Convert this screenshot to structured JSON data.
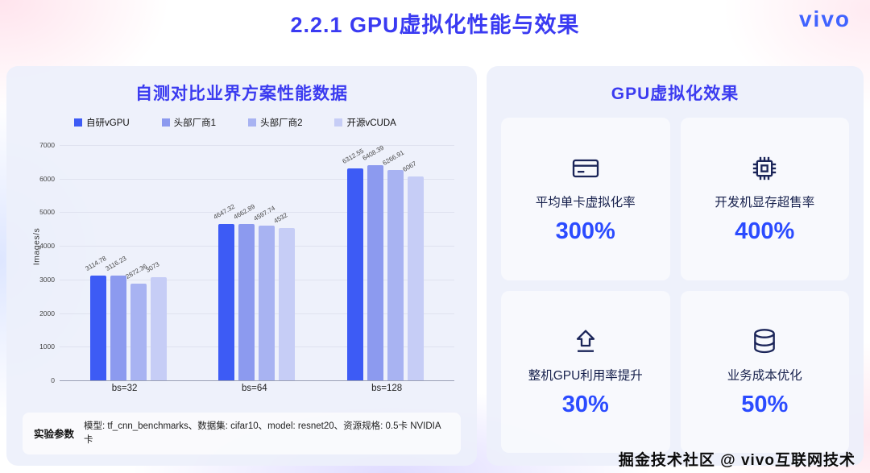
{
  "header": {
    "title": "2.2.1 GPU虚拟化性能与效果",
    "logo": "vivo"
  },
  "left_panel": {
    "title": "自测对比业界方案性能数据",
    "footer_label": "实验参数",
    "footer_text": "模型: tf_cnn_benchmarks、数据集: cifar10、model: resnet20、资源规格: 0.5卡 NVIDIA 卡"
  },
  "chart_data": {
    "type": "bar",
    "title": "自测对比业界方案性能数据",
    "categories": [
      "bs=32",
      "bs=64",
      "bs=128"
    ],
    "series": [
      {
        "name": "自研vGPU",
        "color": "#3D5BF5",
        "values": [
          3114.78,
          4647.32,
          6312.55
        ]
      },
      {
        "name": "头部厂商1",
        "color": "#8C9AEF",
        "values": [
          3116.23,
          4662.89,
          6408.39
        ]
      },
      {
        "name": "头部厂商2",
        "color": "#A8B3F2",
        "values": [
          2872.36,
          4597.74,
          6266.91
        ]
      },
      {
        "name": "开源vCUDA",
        "color": "#C6CDF6",
        "values": [
          3073,
          4532,
          6067
        ]
      }
    ],
    "xlabel": "",
    "ylabel": "Images/s",
    "ylim": [
      0,
      7000
    ],
    "ytick_step": 1000,
    "grid": true,
    "legend_position": "top"
  },
  "right_panel": {
    "title": "GPU虚拟化效果",
    "cards": [
      {
        "icon": "card-icon",
        "label": "平均单卡虚拟化率",
        "value": "300%"
      },
      {
        "icon": "chip-icon",
        "label": "开发机显存超售率",
        "value": "400%"
      },
      {
        "icon": "upload-icon",
        "label": "整机GPU利用率提升",
        "value": "30%"
      },
      {
        "icon": "coins-icon",
        "label": "业务成本优化",
        "value": "50%"
      }
    ]
  },
  "watermark": "掘金技术社区 @ vivo互联网技术"
}
